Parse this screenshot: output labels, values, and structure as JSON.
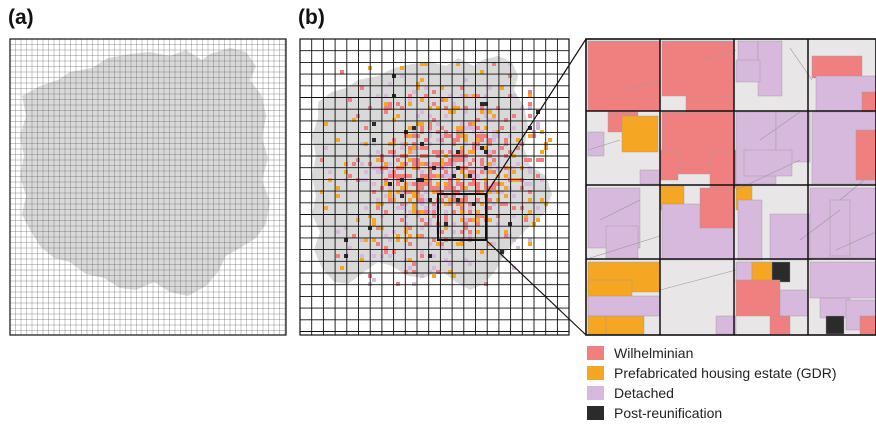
{
  "panels": {
    "a": {
      "label": "(a)"
    },
    "b": {
      "label": "(b)"
    }
  },
  "colors": {
    "city_area": "#d9d9d9",
    "background_parcel": "#e8e6e6",
    "grid_line": "#111111",
    "fine_grid_line": "#555555",
    "wilhelminian": "#f08080",
    "prefab_gdr": "#f5a623",
    "detached": "#d6b9dc",
    "post_reunification": "#2b2b2b"
  },
  "legend": {
    "items": [
      {
        "key": "wilhelminian",
        "label": "Wilhelminian",
        "color": "#f08080"
      },
      {
        "key": "prefab_gdr",
        "label": "Prefabricated housing estate (GDR)",
        "color": "#f5a623"
      },
      {
        "key": "detached",
        "label": "Detached",
        "color": "#d6b9dc"
      },
      {
        "key": "post_reunification",
        "label": "Post-reunification",
        "color": "#2b2b2b"
      }
    ]
  }
}
